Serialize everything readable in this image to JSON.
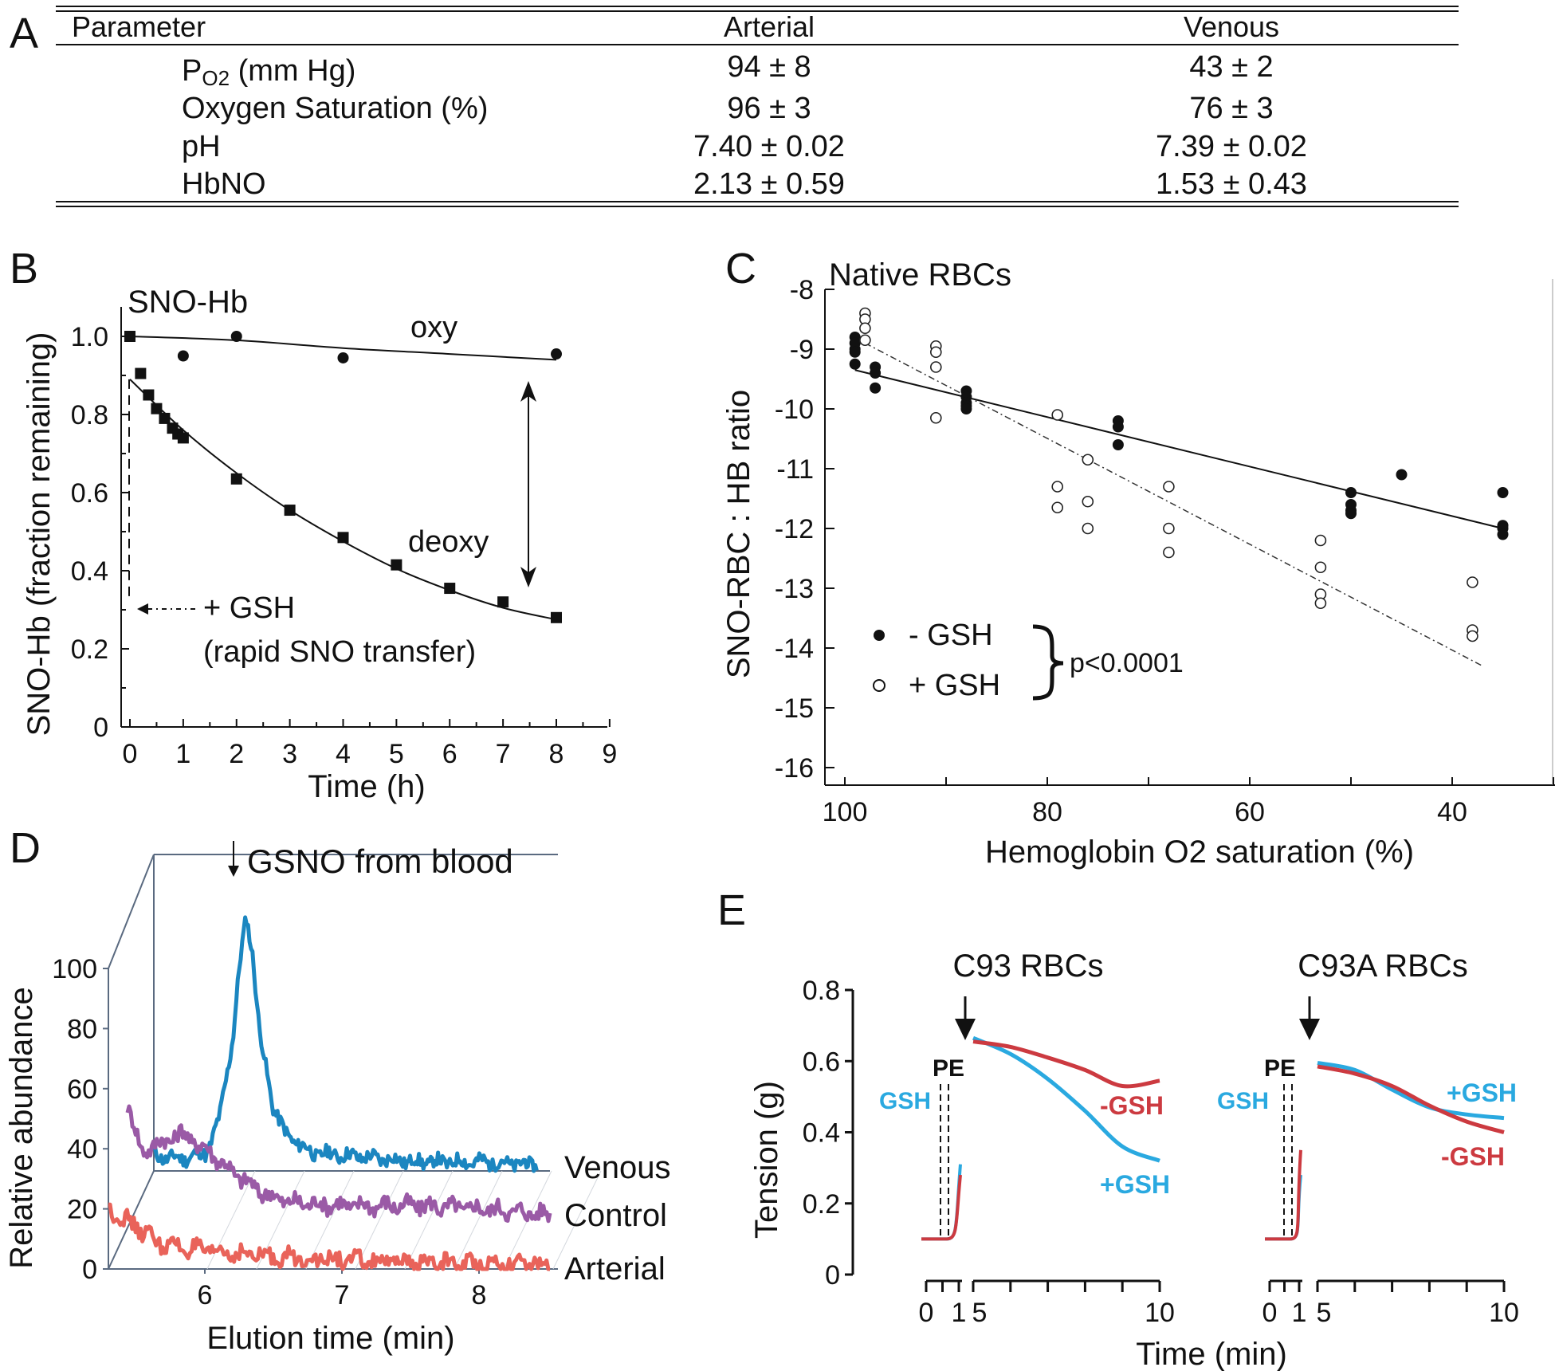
{
  "panels": {
    "a": {
      "letter": "A"
    },
    "b": {
      "letter": "B"
    },
    "c": {
      "letter": "C"
    },
    "d": {
      "letter": "D"
    },
    "e": {
      "letter": "E"
    }
  },
  "table": {
    "headers": [
      "Parameter",
      "Arterial",
      "Venous"
    ],
    "rows": [
      {
        "param_main": "P",
        "param_sub": "O2",
        "param_rest": " (mm Hg)",
        "arterial": "94 ± 8",
        "venous": "43 ± 2"
      },
      {
        "param_main": "Oxygen Saturation (%)",
        "param_sub": "",
        "param_rest": "",
        "arterial": "96 ± 3",
        "venous": "76 ± 3"
      },
      {
        "param_main": "pH",
        "param_sub": "",
        "param_rest": "",
        "arterial": "7.40 ± 0.02",
        "venous": "7.39 ± 0.02"
      },
      {
        "param_main": "HbNO",
        "param_sub": "",
        "param_rest": "",
        "arterial": "2.13 ± 0.59",
        "venous": "1.53 ± 0.43"
      }
    ]
  },
  "chart_data": [
    {
      "id": "B",
      "type": "line",
      "title": "SNO-Hb",
      "xlabel": "Time (h)",
      "ylabel": "SNO-Hb (fraction remaining)",
      "xlim": [
        0,
        9
      ],
      "ylim": [
        0,
        1.0
      ],
      "xticks": [
        0,
        1,
        2,
        3,
        4,
        5,
        6,
        7,
        8,
        9
      ],
      "yticks": [
        0,
        0.2,
        0.4,
        0.6,
        0.8,
        1.0
      ],
      "ytick_labels": [
        "0",
        "0.2",
        "0.4",
        "0.6",
        "0.8",
        "1.0"
      ],
      "series": [
        {
          "name": "oxy",
          "marker": "circle",
          "x": [
            0,
            1,
            2,
            4,
            8
          ],
          "y": [
            1.0,
            0.95,
            1.0,
            0.945,
            0.955
          ],
          "fit": [
            [
              0,
              1.0
            ],
            [
              2,
              0.99
            ],
            [
              4,
              0.97
            ],
            [
              6,
              0.955
            ],
            [
              8,
              0.94
            ]
          ]
        },
        {
          "name": "deoxy",
          "marker": "square",
          "x": [
            0,
            0.2,
            0.35,
            0.5,
            0.65,
            0.8,
            0.9,
            1.0,
            2,
            3,
            4,
            5,
            6,
            7,
            8
          ],
          "y": [
            1.0,
            0.905,
            0.85,
            0.815,
            0.79,
            0.765,
            0.75,
            0.74,
            0.635,
            0.555,
            0.485,
            0.415,
            0.355,
            0.32,
            0.28
          ],
          "fit": [
            [
              0,
              0.89
            ],
            [
              1,
              0.76
            ],
            [
              2,
              0.65
            ],
            [
              3,
              0.555
            ],
            [
              4,
              0.475
            ],
            [
              5,
              0.405
            ],
            [
              6,
              0.35
            ],
            [
              7,
              0.305
            ],
            [
              8,
              0.275
            ]
          ]
        }
      ],
      "annotations": {
        "oxy_label": "oxy",
        "deoxy_label": "deoxy",
        "gsh_label": "+ GSH",
        "gsh_note": "(rapid SNO transfer)"
      }
    },
    {
      "id": "C",
      "type": "scatter",
      "title": "Native RBCs",
      "xlabel": "Hemoglobin O2 saturation (%)",
      "ylabel": "SNO-RBC : HB ratio",
      "xlim": [
        100,
        30
      ],
      "ylim": [
        -16,
        -8
      ],
      "xticks": [
        100,
        80,
        60,
        40
      ],
      "yticks": [
        -8,
        -9,
        -10,
        -11,
        -12,
        -13,
        -14,
        -15,
        -16
      ],
      "series": [
        {
          "name": "- GSH",
          "marker": "filled-circle",
          "x": [
            99,
            99,
            99,
            99,
            99,
            97,
            97,
            97,
            88,
            88,
            88,
            88,
            88,
            73,
            73,
            73,
            50,
            50,
            50,
            50,
            45,
            35,
            35,
            35,
            35
          ],
          "y": [
            -8.8,
            -8.9,
            -9.0,
            -9.05,
            -9.25,
            -9.3,
            -9.4,
            -9.65,
            -9.7,
            -9.8,
            -9.9,
            -9.95,
            -10.0,
            -10.2,
            -10.3,
            -10.6,
            -11.4,
            -11.6,
            -11.7,
            -11.75,
            -11.1,
            -11.4,
            -11.95,
            -12.0,
            -12.1
          ],
          "fit": [
            [
              99,
              -9.35
            ],
            [
              35,
              -12.0
            ]
          ]
        },
        {
          "name": "+ GSH",
          "marker": "open-circle",
          "x": [
            98,
            98,
            98,
            98,
            91,
            91,
            91,
            91,
            79,
            79,
            79,
            76,
            76,
            76,
            68,
            68,
            68,
            53,
            53,
            53,
            53,
            38,
            38,
            38
          ],
          "y": [
            -8.4,
            -8.5,
            -8.65,
            -8.85,
            -8.95,
            -9.05,
            -9.3,
            -10.15,
            -10.1,
            -11.3,
            -11.65,
            -10.85,
            -11.55,
            -12.0,
            -11.3,
            -12.0,
            -12.4,
            -12.2,
            -12.65,
            -13.1,
            -13.25,
            -12.9,
            -13.7,
            -13.8
          ],
          "fit": [
            [
              98,
              -8.9
            ],
            [
              37,
              -14.3
            ]
          ]
        }
      ],
      "legend": {
        "stat": "p<0.0001"
      }
    },
    {
      "id": "D",
      "type": "line",
      "title": "GSNO from blood",
      "xlabel": "Elution time (min)",
      "ylabel": "Relative abundance",
      "xticks": [
        6,
        7,
        8
      ],
      "yticks": [
        0,
        20,
        40,
        60,
        80,
        100
      ],
      "series": [
        {
          "name": "Venous",
          "color": "#1b86c0",
          "x": [
            5.5,
            5.7,
            5.9,
            6.0,
            6.1,
            6.15,
            6.2,
            6.25,
            6.3,
            6.4,
            6.5,
            6.7,
            7.0,
            7.5,
            8.0,
            8.4
          ],
          "y": [
            5,
            4,
            6,
            18,
            45,
            68,
            85,
            72,
            46,
            22,
            12,
            6,
            5,
            3,
            3,
            2
          ]
        },
        {
          "name": "Control",
          "color": "#9a5aa6",
          "x": [
            5.4,
            5.5,
            5.6,
            5.8,
            6.0,
            6.2,
            6.4,
            6.6,
            7.0,
            7.5,
            8.0,
            8.5
          ],
          "y": [
            40,
            24,
            26,
            30,
            24,
            16,
            10,
            7,
            6,
            6,
            5,
            3
          ]
        },
        {
          "name": "Arterial",
          "color": "#e9635a",
          "x": [
            5.3,
            5.5,
            5.7,
            6.0,
            6.5,
            7.0,
            7.5,
            8.0,
            8.5
          ],
          "y": [
            20,
            14,
            8,
            6,
            4,
            3,
            2,
            2,
            1
          ]
        }
      ],
      "annotations": {
        "arrow_label": "GSNO from blood"
      }
    },
    {
      "id": "E",
      "type": "line",
      "xlabel": "Time (min)",
      "ylabel": "Tension (g)",
      "ylim": [
        0,
        0.8
      ],
      "yticks": [
        0,
        0.2,
        0.4,
        0.6,
        0.8
      ],
      "subplots": [
        {
          "title": "C93 RBCs",
          "xtick_labels": [
            "0",
            "1",
            "5",
            "10"
          ],
          "labels": {
            "pe": "PE",
            "gsh": "GSH",
            "minus": "-GSH",
            "plus": "+GSH"
          },
          "series": [
            {
              "name": "+GSH",
              "color": "#2aa9e0",
              "t": [
                5,
                6,
                7,
                8,
                9,
                10
              ],
              "y": [
                0.665,
                0.62,
                0.55,
                0.46,
                0.36,
                0.32
              ]
            },
            {
              "name": "-GSH",
              "color": "#cc3a40",
              "t": [
                5,
                6,
                7,
                8,
                9,
                10
              ],
              "y": [
                0.655,
                0.64,
                0.61,
                0.575,
                0.53,
                0.545
              ]
            }
          ]
        },
        {
          "title": "C93A RBCs",
          "xtick_labels": [
            "0",
            "1",
            "5",
            "10"
          ],
          "labels": {
            "pe": "PE",
            "gsh": "GSH",
            "minus": "-GSH",
            "plus": "+GSH"
          },
          "series": [
            {
              "name": "+GSH",
              "color": "#2aa9e0",
              "t": [
                5,
                6,
                7,
                8,
                9,
                10
              ],
              "y": [
                0.595,
                0.575,
                0.52,
                0.47,
                0.45,
                0.44
              ]
            },
            {
              "name": "-GSH",
              "color": "#cc3a40",
              "t": [
                5,
                6,
                7,
                8,
                9,
                10
              ],
              "y": [
                0.585,
                0.565,
                0.53,
                0.475,
                0.43,
                0.4
              ]
            }
          ]
        }
      ]
    }
  ]
}
